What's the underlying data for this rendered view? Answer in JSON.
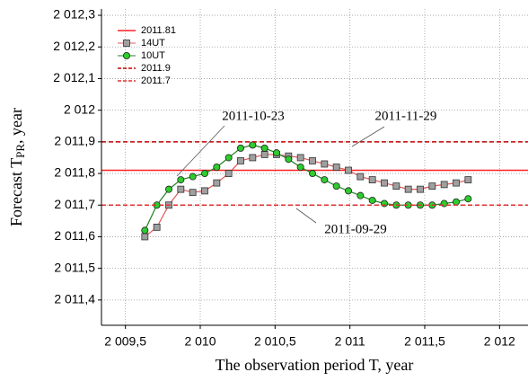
{
  "chart_data": {
    "type": "forecast",
    "x_label": "The observation period T, year",
    "y_label": "Forecast T",
    "y_label_sub": "PR",
    "y_label_suffix": ", year",
    "xlim": [
      2009.34,
      2012.19
    ],
    "ylim": [
      2011.32,
      2012.32
    ],
    "xticks": [
      {
        "value": 2009.5,
        "label": "2 009,5"
      },
      {
        "value": 2010,
        "label": "2 010"
      },
      {
        "value": 2010.5,
        "label": "2 010,5"
      },
      {
        "value": 2011,
        "label": "2 011"
      },
      {
        "value": 2011.5,
        "label": "2 011,5"
      },
      {
        "value": 2012,
        "label": "2 012"
      }
    ],
    "yticks": [
      {
        "value": 2012.3,
        "label": "2 012,3"
      },
      {
        "value": 2012.2,
        "label": "2 012,2"
      },
      {
        "value": 2012.1,
        "label": "2 012,1"
      },
      {
        "value": 2012,
        "label": "2 012"
      },
      {
        "value": 2011.9,
        "label": "2 011,9"
      },
      {
        "value": 2011.8,
        "label": "2 011,8"
      },
      {
        "value": 2011.7,
        "label": "2 011,7"
      },
      {
        "value": 2011.6,
        "label": "2 011,6"
      },
      {
        "value": 2011.5,
        "label": "2 011,5"
      },
      {
        "value": 2011.4,
        "label": "2 011,4"
      }
    ],
    "grid": true,
    "legend": "upper left",
    "series": [
      {
        "name": "2011.81",
        "kind": "hline",
        "dash": false,
        "color": "#ff2020",
        "value": 2011.81
      },
      {
        "name": "14UT",
        "kind": "markers",
        "marker": "square",
        "color": "#a0a0a0",
        "line_color": "#e05858",
        "x": [
          2009.63,
          2009.71,
          2009.79,
          2009.87,
          2009.95,
          2010.03,
          2010.11,
          2010.19,
          2010.27,
          2010.35,
          2010.43,
          2010.51,
          2010.59,
          2010.67,
          2010.75,
          2010.83,
          2010.91,
          2010.99,
          2011.07,
          2011.15,
          2011.23,
          2011.31,
          2011.39,
          2011.47,
          2011.55,
          2011.63,
          2011.71,
          2011.79
        ],
        "values": [
          2011.6,
          2011.63,
          2011.7,
          2011.75,
          2011.74,
          2011.745,
          2011.77,
          2011.8,
          2011.84,
          2011.85,
          2011.86,
          2011.86,
          2011.855,
          2011.85,
          2011.84,
          2011.83,
          2011.82,
          2011.81,
          2011.79,
          2011.78,
          2011.77,
          2011.76,
          2011.75,
          2011.75,
          2011.76,
          2011.765,
          2011.77,
          2011.78
        ]
      },
      {
        "name": "10UT",
        "kind": "markers",
        "marker": "circle",
        "color": "#2ecc2e",
        "line_color": "#208020",
        "x": [
          2009.63,
          2009.71,
          2009.79,
          2009.87,
          2009.95,
          2010.03,
          2010.11,
          2010.19,
          2010.27,
          2010.35,
          2010.43,
          2010.51,
          2010.59,
          2010.67,
          2010.75,
          2010.83,
          2010.91,
          2010.99,
          2011.07,
          2011.15,
          2011.23,
          2011.31,
          2011.39,
          2011.47,
          2011.55,
          2011.63,
          2011.71,
          2011.79
        ],
        "values": [
          2011.62,
          2011.7,
          2011.75,
          2011.78,
          2011.79,
          2011.8,
          2011.82,
          2011.85,
          2011.88,
          2011.89,
          2011.88,
          2011.865,
          2011.845,
          2011.82,
          2011.8,
          2011.78,
          2011.76,
          2011.745,
          2011.73,
          2011.715,
          2011.705,
          2011.7,
          2011.7,
          2011.7,
          2011.7,
          2011.705,
          2011.71,
          2011.72
        ]
      },
      {
        "name": "2011.9",
        "kind": "hline",
        "dash": true,
        "color": "#c00000",
        "value": 2011.9
      },
      {
        "name": "2011.7",
        "kind": "hline",
        "dash": true,
        "color": "#e03030",
        "value": 2011.7
      }
    ],
    "annotations": [
      "2011-10-23",
      "2011-11-29",
      "2011-09-29"
    ]
  }
}
